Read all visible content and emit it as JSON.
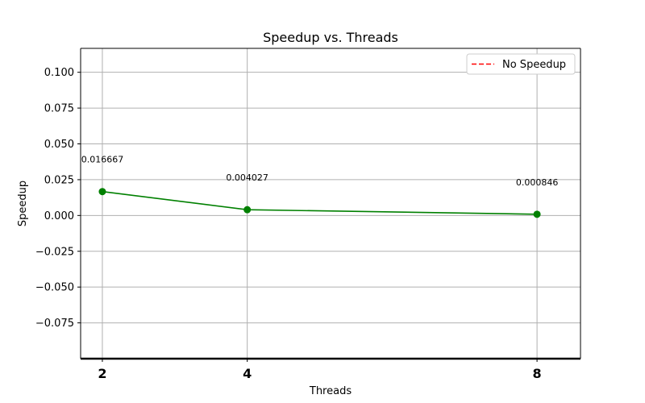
{
  "chart_data": {
    "type": "line",
    "title": "Speedup vs. Threads",
    "xlabel": "Threads",
    "ylabel": "Speedup",
    "x": [
      2,
      4,
      8
    ],
    "xticks": [
      "2",
      "4",
      "8"
    ],
    "xlim": [
      1.7,
      8.6
    ],
    "ylim": [
      -0.1,
      0.1167
    ],
    "yticks": [
      -0.075,
      -0.05,
      -0.025,
      0.0,
      0.025,
      0.05,
      0.075,
      0.1
    ],
    "ytick_labels": [
      "−0.075",
      "−0.050",
      "−0.025",
      "0.000",
      "0.025",
      "0.050",
      "0.075",
      "0.100"
    ],
    "grid": true,
    "series": [
      {
        "values": [
          0.016667,
          0.004027,
          0.000846
        ],
        "color": "#008000",
        "marker": "circle",
        "data_labels": [
          "0.016667",
          "0.004027",
          "0.000846"
        ]
      }
    ],
    "reference_line": {
      "name": "No Speedup",
      "value": 1.0,
      "color": "#ff0000",
      "style": "dashed"
    },
    "legend": {
      "position": "top-right",
      "entries": [
        "No Speedup"
      ]
    }
  }
}
